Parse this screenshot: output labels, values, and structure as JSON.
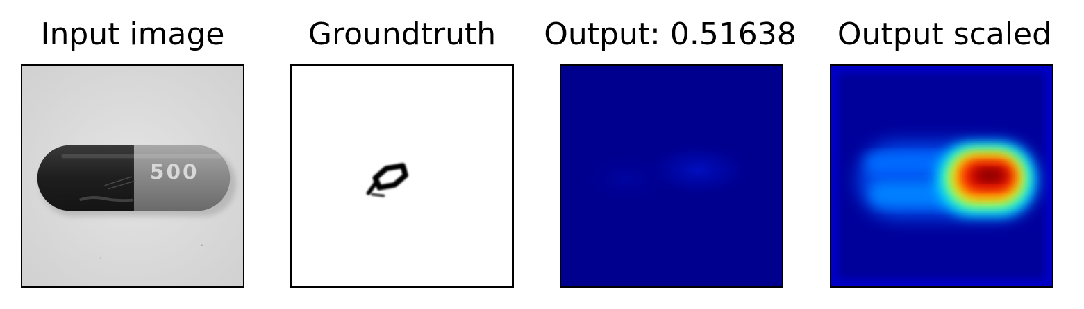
{
  "panels": [
    {
      "title": "Input image",
      "content": "grayscale photo of capsule pill"
    },
    {
      "title": "Groundtruth",
      "content": "defect mask"
    },
    {
      "title": "Output: 0.51638",
      "content": "heatmap, jet colormap"
    },
    {
      "title": "Output scaled",
      "content": "heatmap, jet colormap, scaled"
    }
  ],
  "capsule_print": "500",
  "colors": {
    "jet_min": "#00008f",
    "jet_max": "#800000",
    "mask": "#000000",
    "background": "#ffffff"
  }
}
